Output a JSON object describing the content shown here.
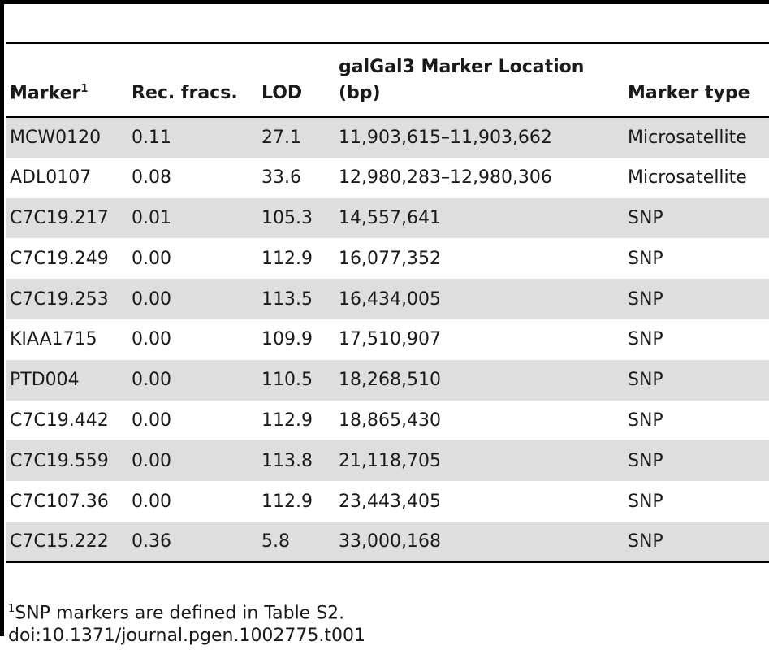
{
  "table": {
    "headers": {
      "marker": "Marker",
      "marker_sup": "1",
      "rec_fracs": "Rec. fracs.",
      "lod": "LOD",
      "location": "galGal3 Marker Location (bp)",
      "marker_type": "Marker type"
    },
    "rows": [
      {
        "marker": "MCW0120",
        "rec": "0.11",
        "lod": "27.1",
        "location": "11,903,615–11,903,662",
        "type": "Microsatellite"
      },
      {
        "marker": "ADL0107",
        "rec": "0.08",
        "lod": "33.6",
        "location": "12,980,283–12,980,306",
        "type": "Microsatellite"
      },
      {
        "marker": "C7C19.217",
        "rec": "0.01",
        "lod": "105.3",
        "location": "14,557,641",
        "type": "SNP"
      },
      {
        "marker": "C7C19.249",
        "rec": "0.00",
        "lod": "112.9",
        "location": "16,077,352",
        "type": "SNP"
      },
      {
        "marker": "C7C19.253",
        "rec": "0.00",
        "lod": "113.5",
        "location": "16,434,005",
        "type": "SNP"
      },
      {
        "marker": "KIAA1715",
        "rec": "0.00",
        "lod": "109.9",
        "location": "17,510,907",
        "type": "SNP"
      },
      {
        "marker": "PTD004",
        "rec": "0.00",
        "lod": "110.5",
        "location": "18,268,510",
        "type": "SNP"
      },
      {
        "marker": "C7C19.442",
        "rec": "0.00",
        "lod": "112.9",
        "location": "18,865,430",
        "type": "SNP"
      },
      {
        "marker": "C7C19.559",
        "rec": "0.00",
        "lod": "113.8",
        "location": "21,118,705",
        "type": "SNP"
      },
      {
        "marker": "C7C107.36",
        "rec": "0.00",
        "lod": "112.9",
        "location": "23,443,405",
        "type": "SNP"
      },
      {
        "marker": "C7C15.222",
        "rec": "0.36",
        "lod": "5.8",
        "location": "33,000,168",
        "type": "SNP"
      }
    ]
  },
  "footnote": {
    "sup": "1",
    "text": "SNP markers are defined in Table S2."
  },
  "doi": "doi:10.1371/journal.pgen.1002775.t001"
}
